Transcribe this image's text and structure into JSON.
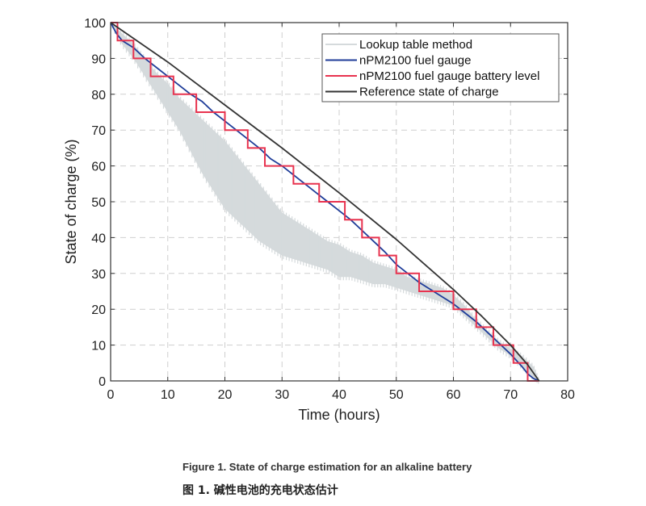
{
  "chart_data": {
    "type": "line",
    "title": "",
    "xlabel": "Time (hours)",
    "ylabel": "State of charge (%)",
    "xlim": [
      0,
      80
    ],
    "ylim": [
      0,
      100
    ],
    "xticks": [
      0,
      10,
      20,
      30,
      40,
      50,
      60,
      70,
      80
    ],
    "yticks": [
      0,
      10,
      20,
      30,
      40,
      50,
      60,
      70,
      80,
      90,
      100
    ],
    "grid": true,
    "legend_position": "top-right",
    "series": [
      {
        "name": "Lookup table method",
        "color": "#d5dadc",
        "style": "band",
        "x": [
          0,
          2,
          4,
          6,
          8,
          10,
          12,
          14,
          16,
          18,
          20,
          22,
          24,
          26,
          28,
          30,
          32,
          34,
          36,
          38,
          40,
          42,
          44,
          46,
          48,
          50,
          52,
          54,
          56,
          58,
          60,
          62,
          64,
          66,
          68,
          70,
          72,
          74,
          75
        ],
        "upper": [
          100,
          97,
          94,
          90,
          86,
          83,
          79,
          76,
          73,
          70,
          67,
          63,
          59,
          55,
          51,
          47,
          45,
          43,
          41,
          39,
          38,
          36,
          35,
          33,
          32,
          31,
          29,
          28,
          27,
          26,
          24,
          21,
          17,
          14,
          11,
          9,
          7,
          4,
          0
        ],
        "lower": [
          100,
          94,
          90,
          85,
          80,
          75,
          70,
          64,
          58,
          53,
          48,
          45,
          42,
          39,
          37,
          35,
          34,
          33,
          32,
          31,
          29,
          29,
          28,
          27,
          27,
          26,
          25,
          24,
          23,
          22,
          21,
          18,
          15,
          12,
          9,
          7,
          4,
          1,
          0
        ]
      },
      {
        "name": "nPM2100 fuel gauge",
        "color": "#1f3d99",
        "x": [
          0,
          1,
          2,
          4,
          6,
          8,
          10,
          12,
          14,
          16,
          18,
          20,
          22,
          24,
          26,
          28,
          30,
          32,
          34,
          36,
          38,
          40,
          42,
          44,
          46,
          48,
          50,
          52,
          54,
          56,
          58,
          60,
          62,
          64,
          66,
          68,
          70,
          72,
          73,
          74,
          75
        ],
        "y": [
          100,
          97,
          95,
          93,
          90,
          87.5,
          85,
          82.5,
          80,
          78,
          75,
          72.5,
          70,
          67.5,
          65,
          62,
          60,
          57.5,
          55,
          52.5,
          50,
          47.5,
          45,
          42,
          39,
          36,
          32.5,
          30,
          27.5,
          25.5,
          23.5,
          21.5,
          19,
          16.5,
          13.5,
          10.5,
          7.5,
          4,
          2,
          0.7,
          0
        ]
      },
      {
        "name": "nPM2100 fuel gauge battery level",
        "color": "#e8334f",
        "style": "step",
        "x": [
          0,
          1.2,
          4,
          7,
          11,
          15,
          20,
          24,
          27,
          32,
          36.5,
          41,
          44,
          47,
          50,
          54,
          60,
          64,
          67,
          70.5,
          73,
          75
        ],
        "y": [
          100,
          95,
          90,
          85,
          80,
          75,
          70,
          65,
          60,
          55,
          50,
          45,
          40,
          35,
          30,
          25,
          20,
          15,
          10,
          5,
          0,
          0
        ]
      },
      {
        "name": "Reference state of charge",
        "color": "#333333",
        "x": [
          0,
          10,
          20,
          30,
          40,
          50,
          60,
          65,
          70,
          73,
          75
        ],
        "y": [
          100,
          89,
          77,
          65,
          52.5,
          39.5,
          25.5,
          18,
          10,
          4.5,
          0
        ]
      }
    ]
  },
  "captions": {
    "english": "Figure 1. State of charge estimation for an alkaline battery",
    "chinese": "图 1. 碱性电池的充电状态估计"
  }
}
